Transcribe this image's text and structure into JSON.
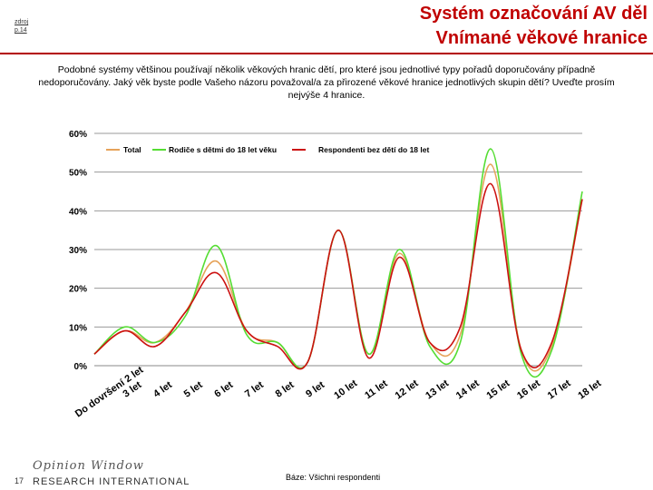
{
  "header": {
    "title_line1": "Systém označování AV děl",
    "title_line2": "Vnímané věkové hranice",
    "source_link": "zdroj",
    "source_page": "p.14"
  },
  "question": "Podobné systémy většinou používají několik věkových hranic dětí, pro které jsou jednotlivé typy pořadů doporučovány případně nedoporučovány. Jaký věk byste podle Vašeho názoru považoval/a za přirozené věkové hranice jednotlivých skupin dětí? Uveďte prosím nejvýše 4 hranice.",
  "chart_data": {
    "type": "line",
    "title": "",
    "xlabel": "",
    "ylabel": "",
    "ylim": [
      0,
      60
    ],
    "yticks": [
      "0%",
      "10%",
      "20%",
      "30%",
      "40%",
      "50%",
      "60%"
    ],
    "categories": [
      "Do dovršení 2 let",
      "3 let",
      "4 let",
      "5 let",
      "6 let",
      "7 let",
      "8 let",
      "9 let",
      "10 let",
      "11 let",
      "12 let",
      "13 let",
      "14 let",
      "15 let",
      "16 let",
      "17 let",
      "18 let"
    ],
    "grid": true,
    "legend_position": "top",
    "series": [
      {
        "name": "Total",
        "color": "#e6a35a",
        "values": [
          3,
          9,
          6,
          14,
          27,
          9,
          6,
          1,
          35,
          3,
          29,
          6,
          8,
          52,
          4,
          5,
          43
        ]
      },
      {
        "name": "Rodiče s dětmi do 18 let věku",
        "color": "#55dd33",
        "values": [
          3,
          10,
          6,
          13,
          31,
          8,
          6,
          1,
          35,
          3,
          30,
          5,
          6,
          56,
          3,
          4,
          45
        ]
      },
      {
        "name": "Respondenti bez dětí do 18 let",
        "color": "#cc1111",
        "values": [
          3,
          9,
          5,
          14,
          24,
          9,
          5,
          1,
          35,
          2,
          28,
          6,
          10,
          47,
          4,
          6,
          43
        ]
      }
    ]
  },
  "footer": {
    "page_number": "17",
    "logo_line1": "Opinion Window",
    "logo_line2": "RESEARCH INTERNATIONAL",
    "base_note": "Báze: Všichni respondenti"
  }
}
